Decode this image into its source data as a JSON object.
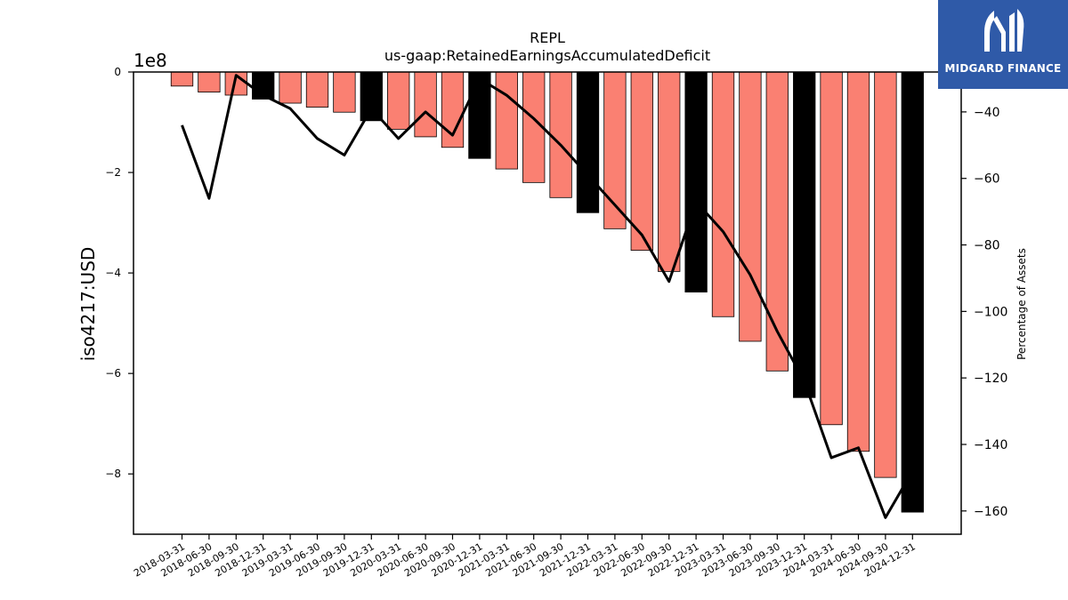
{
  "chart_data": {
    "type": "bar",
    "title": "REPL",
    "subtitle": "us-gaap:RetainedEarningsAccumulatedDeficit",
    "ylabel": "iso4217:USD",
    "y_offset_label": "1e8",
    "y2label": "Percentage of Assets",
    "ylim": [
      -9.2,
      0
    ],
    "y2lim": [
      -167,
      -28
    ],
    "yticks": [
      0,
      -2,
      -4,
      -6,
      -8
    ],
    "ytick_labels": [
      "0",
      "−2",
      "−4",
      "−6",
      "−8"
    ],
    "y2ticks": [
      -40,
      -60,
      -80,
      -100,
      -120,
      -140,
      -160
    ],
    "y2tick_labels": [
      "−40",
      "−60",
      "−80",
      "−100",
      "−120",
      "−140",
      "−160"
    ],
    "categories": [
      "2018-03-31",
      "2018-06-30",
      "2018-09-30",
      "2018-12-31",
      "2019-03-31",
      "2019-06-30",
      "2019-09-30",
      "2019-12-31",
      "2020-03-31",
      "2020-06-30",
      "2020-09-30",
      "2020-12-31",
      "2021-03-31",
      "2021-06-30",
      "2021-09-30",
      "2021-12-31",
      "2022-03-31",
      "2022-06-30",
      "2022-09-30",
      "2022-12-31",
      "2023-03-31",
      "2023-06-30",
      "2023-09-30",
      "2023-12-31",
      "2024-03-31",
      "2024-06-30",
      "2024-09-30",
      "2024-12-31"
    ],
    "series": [
      {
        "type": "bar",
        "unit": "1e8 USD",
        "values": [
          -0.28,
          -0.4,
          -0.46,
          -0.54,
          -0.62,
          -0.7,
          -0.8,
          -0.97,
          -1.14,
          -1.29,
          -1.5,
          -1.72,
          -1.93,
          -2.2,
          -2.5,
          -2.8,
          -3.12,
          -3.55,
          -3.97,
          -4.38,
          -4.87,
          -5.36,
          -5.95,
          -6.48,
          -7.02,
          -7.55,
          -8.07,
          -8.76
        ],
        "colors": [
          "#fa8072",
          "#fa8072",
          "#fa8072",
          "#000000",
          "#fa8072",
          "#fa8072",
          "#fa8072",
          "#000000",
          "#fa8072",
          "#fa8072",
          "#fa8072",
          "#000000",
          "#fa8072",
          "#fa8072",
          "#fa8072",
          "#000000",
          "#fa8072",
          "#fa8072",
          "#fa8072",
          "#000000",
          "#fa8072",
          "#fa8072",
          "#fa8072",
          "#000000",
          "#fa8072",
          "#fa8072",
          "#fa8072",
          "#000000"
        ]
      },
      {
        "type": "line",
        "axis": "right",
        "color": "#000000",
        "values": [
          -44,
          -66,
          -29,
          -35,
          -39,
          -48,
          -53,
          -39,
          -48,
          -40,
          -47,
          -30,
          -35,
          -42,
          -50,
          -59,
          -68,
          -77,
          -91,
          -67,
          -76,
          -89,
          -106,
          -121,
          -144,
          -141,
          -162,
          -148
        ]
      }
    ],
    "grid": false,
    "legend": "none"
  },
  "logo": {
    "text": "MIDGARD FINANCE",
    "bg_color": "#2f5aa8",
    "icon": "midgard-logo-icon"
  }
}
